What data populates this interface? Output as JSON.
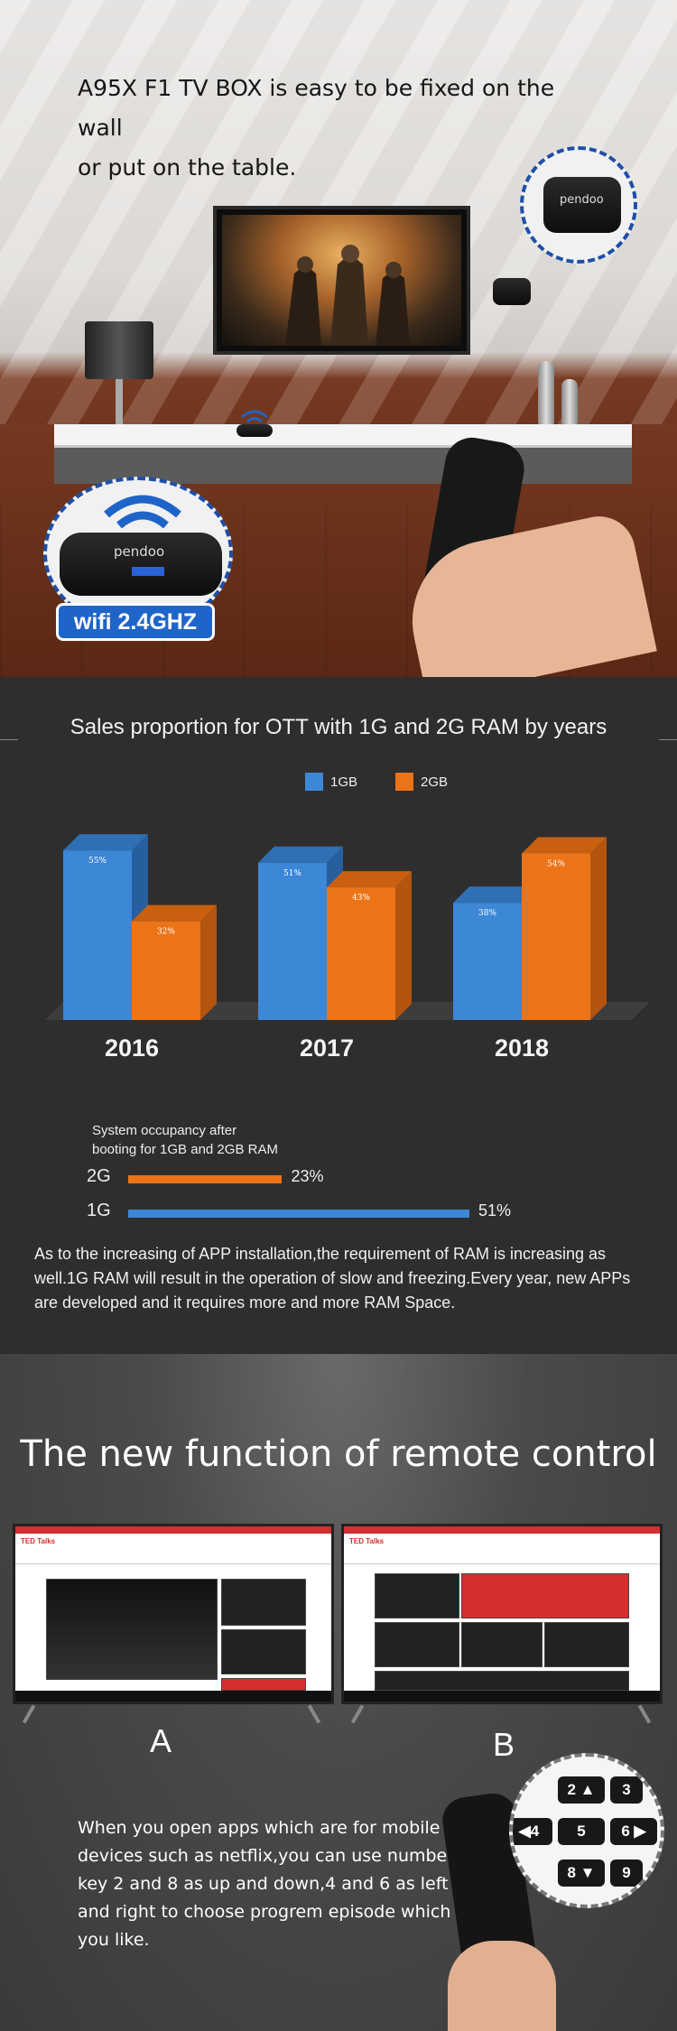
{
  "section1": {
    "intro_line1": "A95X F1 TV BOX  is easy to be fixed on the wall",
    "intro_line2": "or put on the table.",
    "box_brand": "pendoo",
    "wifi_badge": "wifi 2.4GHZ"
  },
  "section2": {
    "legend_1gb": "1GB",
    "legend_2gb": "2GB",
    "colors": {
      "ram1gb": "#3c87d6",
      "ram2gb": "#ec7418"
    },
    "occupancy_title_line1": "System occupancy after",
    "occupancy_title_line2": "booting for 1GB and 2GB RAM",
    "occupancy": [
      {
        "label": "2G",
        "value": 23,
        "value_label": "23%"
      },
      {
        "label": "1G",
        "value": 51,
        "value_label": "51%"
      }
    ],
    "paragraph": "As to the increasing of APP installation,the requirement of RAM is increasing as well.1G RAM will result in the operation of slow and freezing.Every year, new APPs are developed and it requires more and more RAM Space."
  },
  "chart_data": {
    "type": "bar",
    "title": "Sales proportion for OTT with 1G and 2G RAM by years",
    "categories": [
      "2016",
      "2017",
      "2018"
    ],
    "series": [
      {
        "name": "1GB",
        "values": [
          55,
          51,
          38
        ]
      },
      {
        "name": "2GB",
        "values": [
          32,
          43,
          54
        ]
      }
    ],
    "value_labels": {
      "1GB": [
        "55%",
        "51%",
        "38%"
      ],
      "2GB": [
        "32%",
        "43%",
        "54%"
      ]
    },
    "ylim": [
      0,
      60
    ],
    "legend": "top-center",
    "grid": false
  },
  "section3": {
    "title": "The new function of remote control",
    "app_name": "TED Talks",
    "label_a": "A",
    "label_b": "B",
    "paragraph": "When you open apps which are for mobile devices such as netflix,you can use number key 2 and 8 as up and down,4 and 6 as left and right to choose progrem episode which you like.",
    "keys": [
      "2 ▲",
      "3",
      "◀4",
      "5",
      "6 ▶",
      "8 ▼",
      "9"
    ]
  }
}
